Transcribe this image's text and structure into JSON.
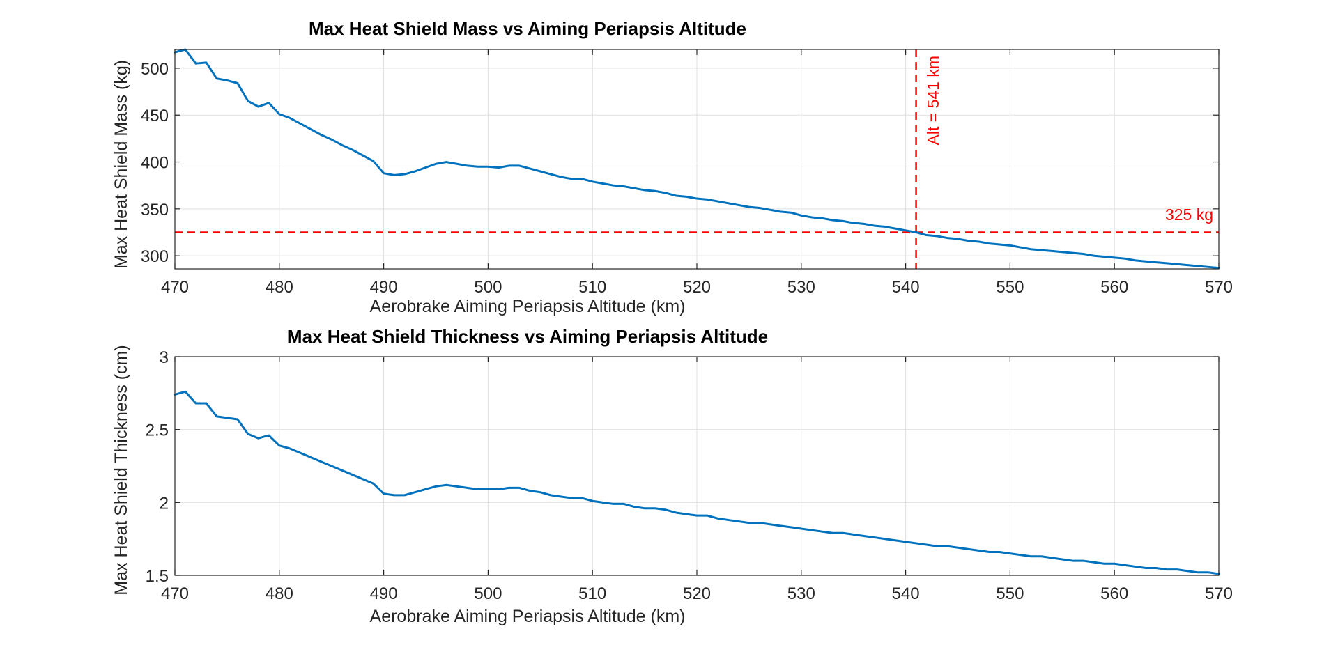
{
  "colors": {
    "series": "#0072BD",
    "reference": "#FF0000",
    "grid": "#DFDFDF",
    "axes": "#262626"
  },
  "chart_data": [
    {
      "type": "line",
      "title": "Max Heat Shield Mass vs Aiming Periapsis Altitude",
      "xlabel": "Aerobrake Aiming Periapsis Altitude (km)",
      "ylabel": "Max Heat Shield Mass (kg)",
      "xlim": [
        470,
        570
      ],
      "ylim": [
        286,
        520
      ],
      "grid": true,
      "xticks": [
        470,
        480,
        490,
        500,
        510,
        520,
        530,
        540,
        550,
        560,
        570
      ],
      "yticks": [
        300,
        350,
        400,
        450,
        500
      ],
      "x": [
        470,
        471,
        472,
        473,
        474,
        475,
        476,
        477,
        478,
        479,
        480,
        481,
        482,
        483,
        484,
        485,
        486,
        487,
        488,
        489,
        490,
        491,
        492,
        493,
        494,
        495,
        496,
        497,
        498,
        499,
        500,
        501,
        502,
        503,
        504,
        505,
        506,
        507,
        508,
        509,
        510,
        511,
        512,
        513,
        514,
        515,
        516,
        517,
        518,
        519,
        520,
        521,
        522,
        523,
        524,
        525,
        526,
        527,
        528,
        529,
        530,
        531,
        532,
        533,
        534,
        535,
        536,
        537,
        538,
        539,
        540,
        541,
        542,
        543,
        544,
        545,
        546,
        547,
        548,
        549,
        550,
        551,
        552,
        553,
        554,
        555,
        556,
        557,
        558,
        559,
        560,
        561,
        562,
        563,
        564,
        565,
        566,
        567,
        568,
        569,
        570
      ],
      "series": [
        {
          "values": [
            517,
            520,
            505,
            506,
            489,
            487,
            484,
            465,
            459,
            463,
            451,
            447,
            441,
            435,
            429,
            424,
            418,
            413,
            407,
            401,
            388,
            386,
            387,
            390,
            394,
            398,
            400,
            398,
            396,
            395,
            395,
            394,
            396,
            396,
            393,
            390,
            387,
            384,
            382,
            382,
            379,
            377,
            375,
            374,
            372,
            370,
            369,
            367,
            364,
            363,
            361,
            360,
            358,
            356,
            354,
            352,
            351,
            349,
            347,
            346,
            343,
            341,
            340,
            338,
            337,
            335,
            334,
            332,
            331,
            329,
            327,
            325,
            322,
            321,
            319,
            318,
            316,
            315,
            313,
            312,
            311,
            309,
            307,
            306,
            305,
            304,
            303,
            302,
            300,
            299,
            298,
            297,
            295,
            294,
            293,
            292,
            291,
            290,
            289,
            288,
            287
          ]
        }
      ],
      "reference_lines": [
        {
          "orientation": "horizontal",
          "value": 325,
          "label": "325 kg"
        },
        {
          "orientation": "vertical",
          "value": 541,
          "label": "Alt = 541 km"
        }
      ]
    },
    {
      "type": "line",
      "title": "Max Heat Shield Thickness vs Aiming Periapsis Altitude",
      "xlabel": "Aerobrake Aiming Periapsis Altitude (km)",
      "ylabel": "Max Heat Shield Thickness (cm)",
      "xlim": [
        470,
        570
      ],
      "ylim": [
        1.5,
        3
      ],
      "grid": true,
      "xticks": [
        470,
        480,
        490,
        500,
        510,
        520,
        530,
        540,
        550,
        560,
        570
      ],
      "yticks": [
        1.5,
        2,
        2.5,
        3
      ],
      "x": [
        470,
        471,
        472,
        473,
        474,
        475,
        476,
        477,
        478,
        479,
        480,
        481,
        482,
        483,
        484,
        485,
        486,
        487,
        488,
        489,
        490,
        491,
        492,
        493,
        494,
        495,
        496,
        497,
        498,
        499,
        500,
        501,
        502,
        503,
        504,
        505,
        506,
        507,
        508,
        509,
        510,
        511,
        512,
        513,
        514,
        515,
        516,
        517,
        518,
        519,
        520,
        521,
        522,
        523,
        524,
        525,
        526,
        527,
        528,
        529,
        530,
        531,
        532,
        533,
        534,
        535,
        536,
        537,
        538,
        539,
        540,
        541,
        542,
        543,
        544,
        545,
        546,
        547,
        548,
        549,
        550,
        551,
        552,
        553,
        554,
        555,
        556,
        557,
        558,
        559,
        560,
        561,
        562,
        563,
        564,
        565,
        566,
        567,
        568,
        569,
        570
      ],
      "series": [
        {
          "values": [
            2.74,
            2.76,
            2.68,
            2.68,
            2.59,
            2.58,
            2.57,
            2.47,
            2.44,
            2.46,
            2.39,
            2.37,
            2.34,
            2.31,
            2.28,
            2.25,
            2.22,
            2.19,
            2.16,
            2.13,
            2.06,
            2.05,
            2.05,
            2.07,
            2.09,
            2.11,
            2.12,
            2.11,
            2.1,
            2.09,
            2.09,
            2.09,
            2.1,
            2.1,
            2.08,
            2.07,
            2.05,
            2.04,
            2.03,
            2.03,
            2.01,
            2.0,
            1.99,
            1.99,
            1.97,
            1.96,
            1.96,
            1.95,
            1.93,
            1.92,
            1.91,
            1.91,
            1.89,
            1.88,
            1.87,
            1.86,
            1.86,
            1.85,
            1.84,
            1.83,
            1.82,
            1.81,
            1.8,
            1.79,
            1.79,
            1.78,
            1.77,
            1.76,
            1.75,
            1.74,
            1.73,
            1.72,
            1.71,
            1.7,
            1.7,
            1.69,
            1.68,
            1.67,
            1.66,
            1.66,
            1.65,
            1.64,
            1.63,
            1.63,
            1.62,
            1.61,
            1.6,
            1.6,
            1.59,
            1.58,
            1.58,
            1.57,
            1.56,
            1.55,
            1.55,
            1.54,
            1.54,
            1.53,
            1.52,
            1.52,
            1.51
          ]
        }
      ]
    }
  ]
}
